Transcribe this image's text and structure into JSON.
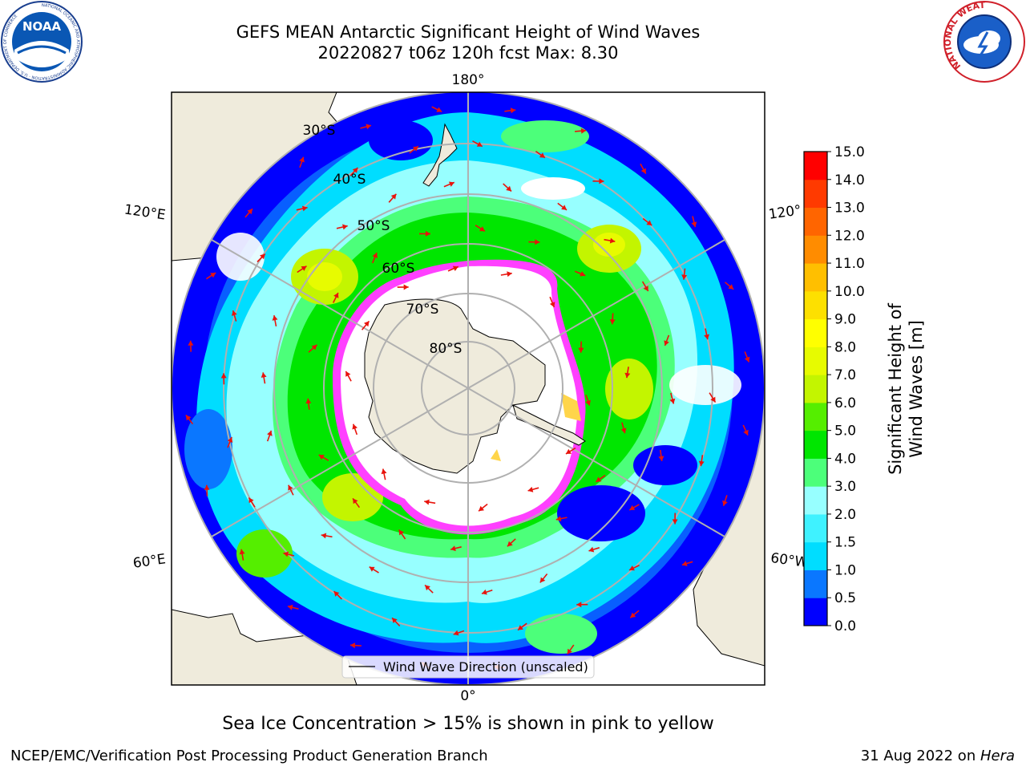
{
  "header": {
    "title_line1": "GEFS MEAN Antarctic Significant Height of Wind Waves",
    "title_line2": "20220827 t06z 120h fcst   Max: 8.30",
    "noaa_logo_text": "NOAA",
    "noaa_logo_ring_text": "NATIONAL OCEANIC AND ATMOSPHERIC ADMINISTRATION · U.S. DEPARTMENT OF COMMERCE",
    "nws_logo_ring_text": "NATIONAL WEATHER SERVICE"
  },
  "map": {
    "projection": "south polar stereographic",
    "longitude_labels": {
      "top": "180°",
      "bottom": "0°",
      "upper_left": "120°E",
      "upper_right": "120°",
      "lower_left": "60°E",
      "lower_right": "60°W"
    },
    "latitude_labels": [
      "30°S",
      "40°S",
      "50°S",
      "60°S",
      "70°S",
      "80°S"
    ],
    "legend_label": "Wind Wave Direction (unscaled)",
    "colors": {
      "land": "#efebdc",
      "arrow": "#e8130c",
      "sea_ice_pink": "#ff40ff",
      "sea_ice_yellow": "#ffd54a",
      "grid": "#b0b0b0"
    }
  },
  "colorbar": {
    "label": "Significant Height of Wind Waves [m]",
    "ticks": [
      "0.0",
      "0.5",
      "1.0",
      "1.5",
      "2.0",
      "3.0",
      "4.0",
      "5.0",
      "6.0",
      "7.0",
      "8.0",
      "9.0",
      "10.0",
      "11.0",
      "12.0",
      "13.0",
      "14.0",
      "15.0"
    ],
    "colors": [
      "#0000ff",
      "#0a77ff",
      "#00ddff",
      "#3ff2ff",
      "#97ffff",
      "#4cff7a",
      "#00e600",
      "#55ee00",
      "#c3f500",
      "#e7fb00",
      "#ffff00",
      "#fde000",
      "#ffbf00",
      "#ff8c00",
      "#ff6500",
      "#ff3a00",
      "#ff0000"
    ]
  },
  "footer": {
    "sea_ice_note": "Sea Ice Concentration > 15% is shown in pink to yellow",
    "credit": "NCEP/EMC/Verification Post Processing Product Generation Branch",
    "date_text": "31 Aug 2022 on ",
    "machine": "Hera"
  }
}
